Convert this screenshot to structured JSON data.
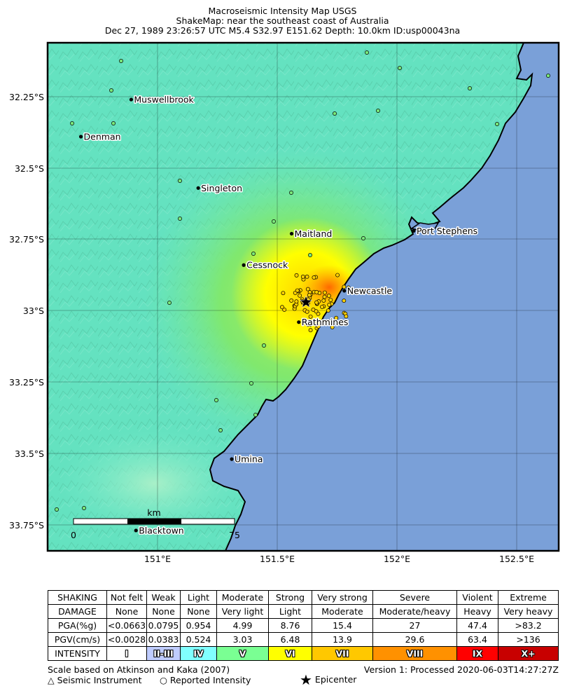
{
  "header": {
    "title": "Macroseismic Intensity Map USGS",
    "subtitle": "ShakeMap: near the southeast coast of Australia",
    "event_line": "Dec 27, 1989 23:26:57 UTC M5.4 S32.97 E151.62 Depth: 10.0km ID:usp00043na"
  },
  "map": {
    "lat_ticks": [
      "32.25°S",
      "32.5°S",
      "32.75°S",
      "33°S",
      "33.25°S",
      "33.5°S",
      "33.75°S"
    ],
    "lon_ticks": [
      "151°E",
      "151.5°E",
      "152°E",
      "152.5°E"
    ],
    "cities": [
      {
        "name": "Muswellbrook",
        "lat": -32.26,
        "lon": 150.89
      },
      {
        "name": "Denman",
        "lat": -32.39,
        "lon": 150.68
      },
      {
        "name": "Singleton",
        "lat": -32.57,
        "lon": 151.17
      },
      {
        "name": "Maitland",
        "lat": -32.73,
        "lon": 151.56
      },
      {
        "name": "Port Stephens",
        "lat": -32.72,
        "lon": 152.07
      },
      {
        "name": "Cessnock",
        "lat": -32.84,
        "lon": 151.36
      },
      {
        "name": "Newcastle",
        "lat": -32.93,
        "lon": 151.78
      },
      {
        "name": "Rathmines",
        "lat": -33.04,
        "lon": 151.59
      },
      {
        "name": "Umina",
        "lat": -33.52,
        "lon": 151.31
      },
      {
        "name": "Blacktown",
        "lat": -33.77,
        "lon": 150.91
      }
    ],
    "epicenter": {
      "lat": -32.97,
      "lon": 151.62
    },
    "scale_bar": {
      "unit": "km",
      "start_label": "0",
      "end_label": "75"
    },
    "colors": {
      "ocean": "#7aa0d8",
      "land_low": "#6ee8c8",
      "intensity_v": "#7ae87a",
      "intensity_vi": "#ffff00",
      "intensity_vii": "#ffc800",
      "coast": "#000000"
    }
  },
  "legend": {
    "rows": [
      {
        "label": "SHAKING",
        "cells": [
          "Not felt",
          "Weak",
          "Light",
          "Moderate",
          "Strong",
          "Very strong",
          "Severe",
          "Violent",
          "Extreme"
        ]
      },
      {
        "label": "DAMAGE",
        "cells": [
          "None",
          "None",
          "None",
          "Very light",
          "Light",
          "Moderate",
          "Moderate/heavy",
          "Heavy",
          "Very heavy"
        ]
      },
      {
        "label": "PGA(%g)",
        "cells": [
          "<0.0663",
          "0.0795",
          "0.954",
          "4.99",
          "8.76",
          "15.4",
          "27",
          "47.4",
          ">83.2"
        ]
      },
      {
        "label": "PGV(cm/s)",
        "cells": [
          "<0.0028",
          "0.0383",
          "0.524",
          "3.03",
          "6.48",
          "13.9",
          "29.6",
          "63.4",
          ">136"
        ]
      }
    ],
    "intensity": {
      "label": "INTENSITY",
      "cells": [
        "I",
        "II-III",
        "IV",
        "V",
        "VI",
        "VII",
        "VIII",
        "IX",
        "X+"
      ],
      "colors": [
        "#ffffff",
        "#bfccff",
        "#80ffff",
        "#7aff93",
        "#ffff00",
        "#ffc800",
        "#ff9100",
        "#ff0000",
        "#c80000"
      ]
    }
  },
  "footer": {
    "scale_note": "Scale based on Atkinson and Kaka (2007)",
    "version": "Version 1: Processed 2020-06-03T14:27:27Z",
    "seismic_instrument": "Seismic Instrument",
    "reported_intensity": "Reported Intensity",
    "epicenter": "Epicenter"
  }
}
